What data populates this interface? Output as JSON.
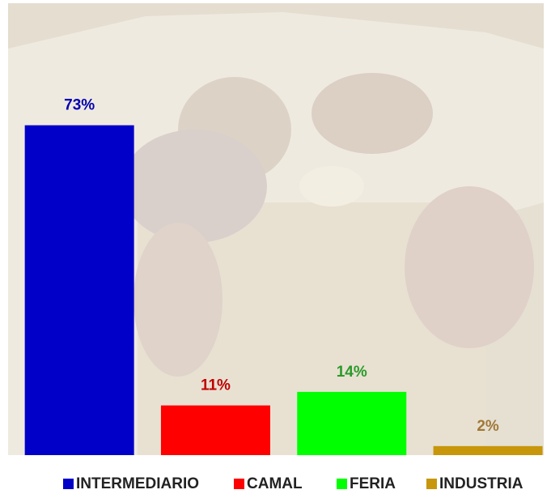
{
  "chart_data": {
    "type": "bar",
    "ylim": [
      0,
      100
    ],
    "series": [
      {
        "name": "INTERMEDIARIO",
        "color": "#0000c8",
        "label_color": "#0000b0",
        "values": [
          73
        ],
        "value_labels": [
          "73%"
        ]
      },
      {
        "name": "CAMAL",
        "color": "#ff0000",
        "label_color": "#c00000",
        "values": [
          11
        ],
        "value_labels": [
          "11%"
        ]
      },
      {
        "name": "FERIA",
        "color": "#00ff00",
        "label_color": "#2a9a2a",
        "values": [
          14
        ],
        "value_labels": [
          "14%"
        ]
      },
      {
        "name": "INDUSTRIA",
        "color": "#c8960a",
        "label_color": "#a07838",
        "values": [
          2
        ],
        "value_labels": [
          "2%"
        ]
      }
    ]
  }
}
